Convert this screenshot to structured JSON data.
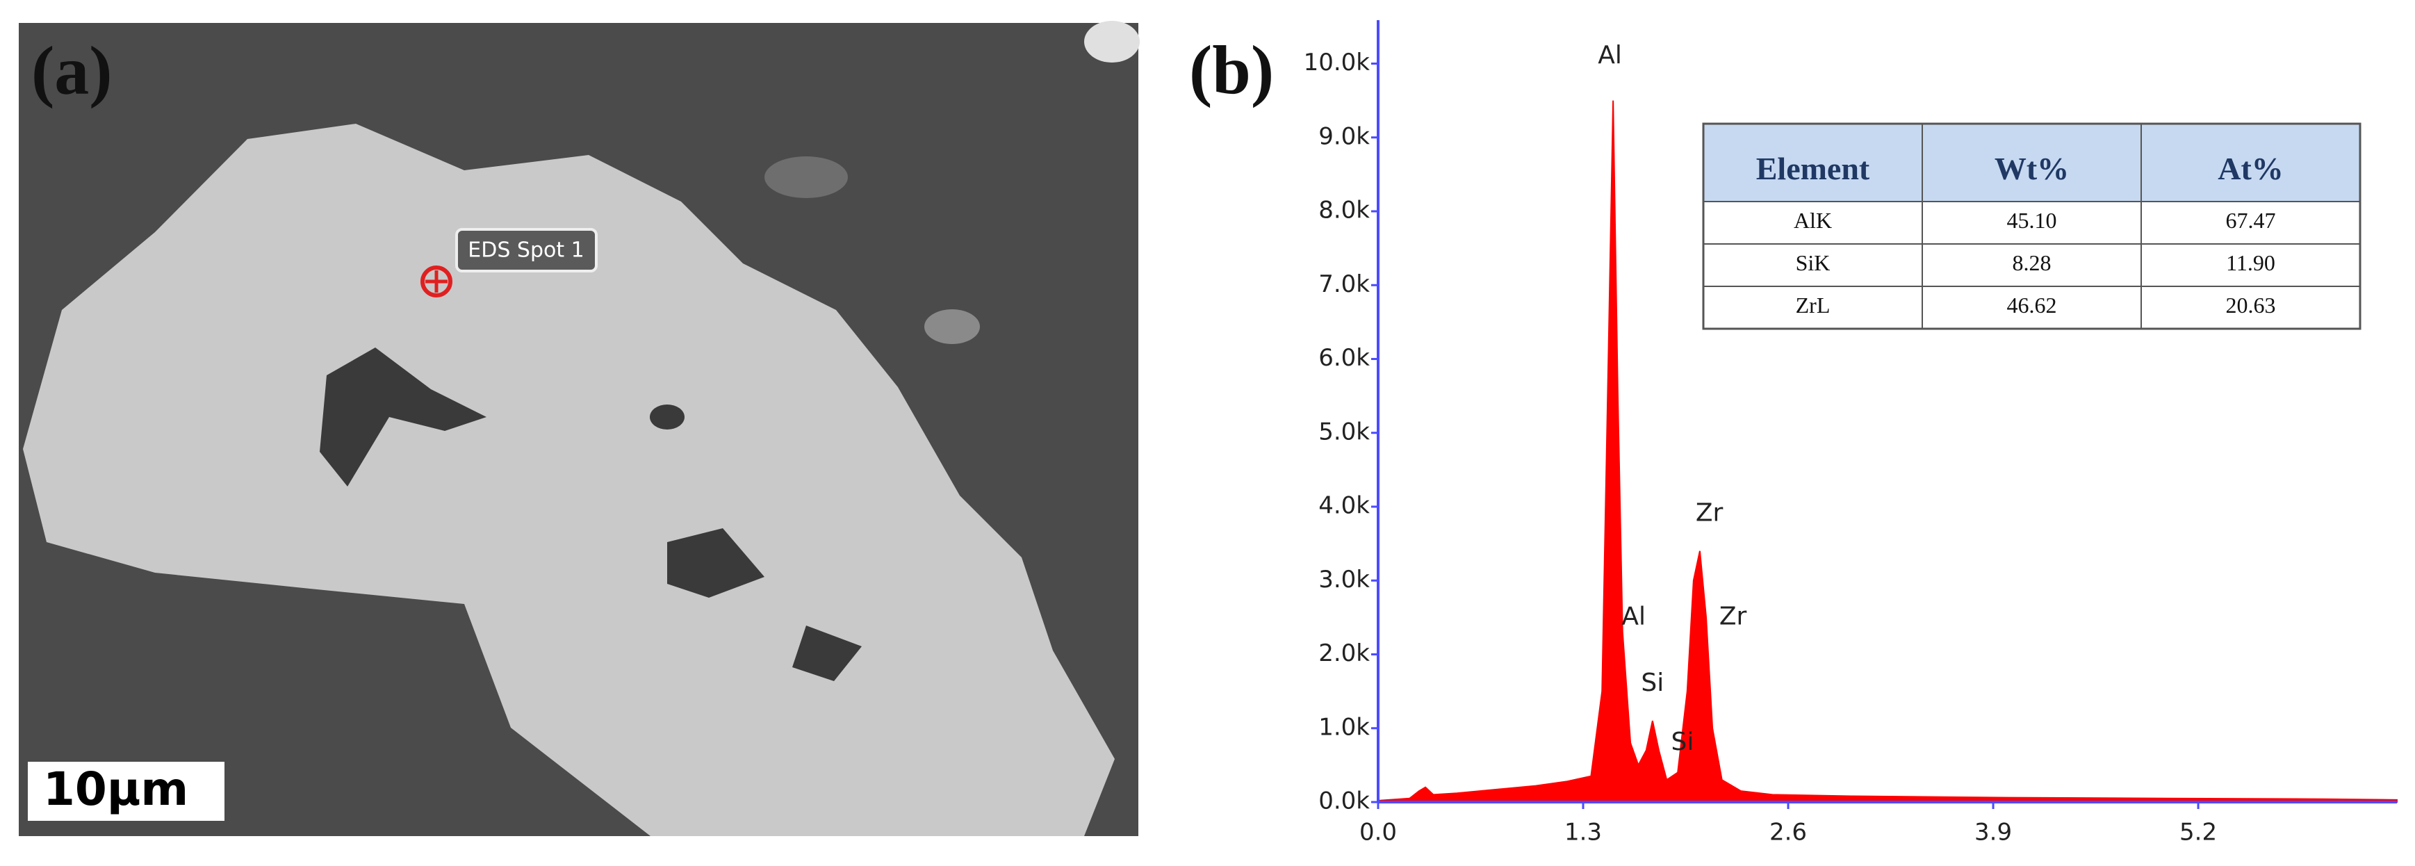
{
  "panel_a": {
    "label": "(a)",
    "spot_label": "EDS Spot 1",
    "scale_bar": "10μm"
  },
  "chart_data": {
    "type": "area",
    "label": "(b)",
    "color": "#ff0000",
    "x": [
      0,
      0.2,
      0.26,
      0.3,
      0.35,
      0.5,
      0.8,
      1.0,
      1.2,
      1.35,
      1.42,
      1.46,
      1.49,
      1.52,
      1.55,
      1.6,
      1.65,
      1.7,
      1.74,
      1.78,
      1.83,
      1.9,
      1.96,
      2.0,
      2.04,
      2.08,
      2.12,
      2.18,
      2.3,
      2.5,
      3.0,
      4.0,
      5.0,
      6.0,
      6.46
    ],
    "series": [
      {
        "values": [
          0.02,
          0.05,
          0.15,
          0.2,
          0.1,
          0.12,
          0.18,
          0.22,
          0.28,
          0.35,
          1.5,
          6.0,
          9.5,
          5.5,
          2.3,
          0.8,
          0.5,
          0.7,
          1.1,
          0.7,
          0.3,
          0.4,
          1.5,
          3.0,
          3.4,
          2.5,
          1.0,
          0.3,
          0.15,
          0.1,
          0.08,
          0.06,
          0.05,
          0.04,
          0.03
        ]
      }
    ],
    "xlim": [
      0,
      6.46
    ],
    "ylim": [
      0,
      10.4
    ],
    "xticks": [
      {
        "value": 0,
        "label": "0.0"
      },
      1.3,
      2.6,
      3.9,
      5.2
    ],
    "yticks": [
      {
        "value": 0,
        "label": "0.0k"
      },
      {
        "value": 1,
        "label": "1.0k"
      },
      {
        "value": 2,
        "label": "2.0k"
      },
      {
        "value": 3,
        "label": "3.0k"
      },
      {
        "value": 4,
        "label": "4.0k"
      },
      {
        "value": 5,
        "label": "5.0k"
      },
      {
        "value": 6,
        "label": "6.0k"
      },
      {
        "value": 7,
        "label": "7.0k"
      },
      {
        "value": 8,
        "label": "8.0k"
      },
      {
        "value": 9,
        "label": "9.0k"
      },
      {
        "value": 10,
        "label": "10.0k"
      }
    ],
    "annotations": [
      {
        "text": "Al",
        "x": 1.47,
        "y": 10.1
      },
      {
        "text": "Al",
        "x": 1.62,
        "y": 2.5
      },
      {
        "text": "Si",
        "x": 1.74,
        "y": 1.6
      },
      {
        "text": "Si",
        "x": 1.93,
        "y": 0.8
      },
      {
        "text": "Zr",
        "x": 2.1,
        "y": 3.9
      },
      {
        "text": "Zr",
        "x": 2.25,
        "y": 2.5
      }
    ],
    "table": {
      "columns": [
        "Element",
        "Wt%",
        "At%"
      ],
      "rows": [
        [
          "AlK",
          "45.10",
          "67.47"
        ],
        [
          "SiK",
          "8.28",
          "11.90"
        ],
        [
          "ZrL",
          "46.62",
          "20.63"
        ]
      ]
    }
  }
}
